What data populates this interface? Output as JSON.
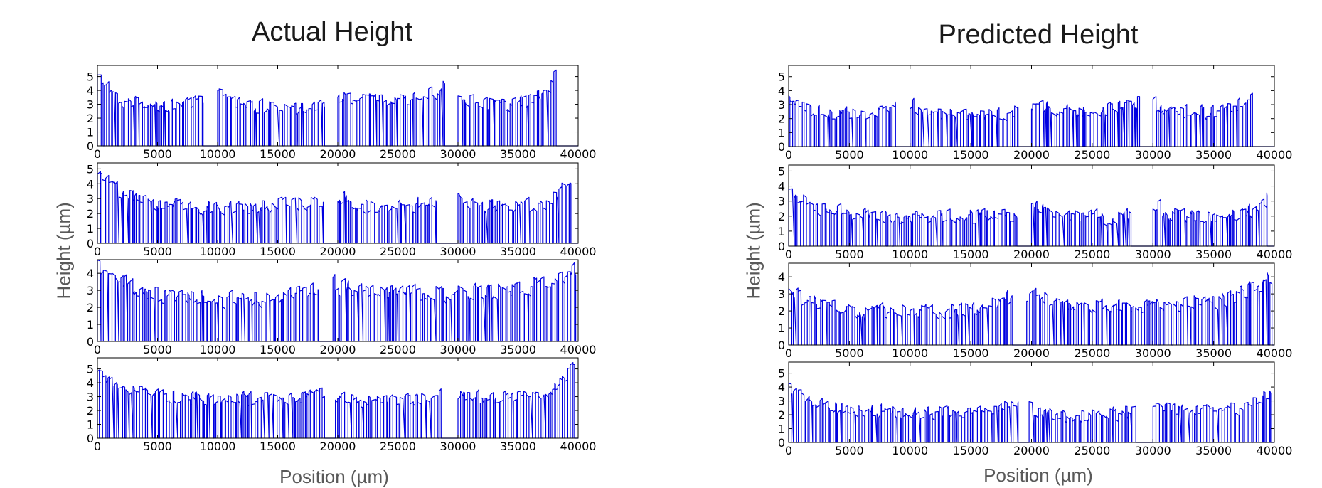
{
  "figure": {
    "left_title": "Actual Height",
    "right_title": "Predicted Height",
    "left_xlabel": "Position (µm)",
    "right_xlabel": "Position (µm)",
    "left_ylabel": "Height (µm)",
    "right_ylabel": "Height (µm)"
  },
  "colors": {
    "trace": "#0000e0",
    "frame": "#000000"
  },
  "chart_data": [
    {
      "type": "line",
      "group": "Actual Height",
      "row": 1,
      "xlim": [
        0,
        40000
      ],
      "ylim": [
        0,
        5.8
      ],
      "xticks": [
        0,
        5000,
        10000,
        15000,
        20000,
        25000,
        30000,
        35000,
        40000
      ],
      "yticks": [
        0,
        1,
        2,
        3,
        4,
        5
      ],
      "grid": false,
      "segments": [
        {
          "x0": 0,
          "x1": 8800,
          "h0": 5.0,
          "h1": 3.3,
          "mid": 2.9
        },
        {
          "x0": 10000,
          "x1": 18900,
          "h0": 4.2,
          "h1": 3.1,
          "mid": 2.7
        },
        {
          "x0": 20000,
          "x1": 28900,
          "h0": 3.6,
          "h1": 4.3,
          "mid": 3.3
        },
        {
          "x0": 30000,
          "x1": 38200,
          "h0": 3.8,
          "h1": 5.3,
          "mid": 2.9
        }
      ]
    },
    {
      "type": "line",
      "group": "Actual Height",
      "row": 2,
      "xlim": [
        0,
        40000
      ],
      "ylim": [
        0,
        5.4
      ],
      "xticks": [
        0,
        5000,
        10000,
        15000,
        20000,
        25000,
        30000,
        35000,
        40000
      ],
      "yticks": [
        0,
        1,
        2,
        3,
        4,
        5
      ],
      "grid": false,
      "segments": [
        {
          "x0": 0,
          "x1": 18800,
          "h0": 4.5,
          "h1": 2.9,
          "mid": 2.4
        },
        {
          "x0": 20000,
          "x1": 28200,
          "h0": 3.2,
          "h1": 2.6,
          "mid": 2.4
        },
        {
          "x0": 30000,
          "x1": 39400,
          "h0": 3.1,
          "h1": 4.6,
          "mid": 2.4
        }
      ]
    },
    {
      "type": "line",
      "group": "Actual Height",
      "row": 3,
      "xlim": [
        0,
        40000
      ],
      "ylim": [
        0,
        4.8
      ],
      "xticks": [
        0,
        5000,
        10000,
        15000,
        20000,
        25000,
        30000,
        35000,
        40000
      ],
      "yticks": [
        0,
        1,
        2,
        3,
        4
      ],
      "grid": false,
      "segments": [
        {
          "x0": 0,
          "x1": 18400,
          "h0": 4.6,
          "h1": 3.3,
          "mid": 2.4
        },
        {
          "x0": 19600,
          "x1": 39800,
          "h0": 3.3,
          "h1": 4.4,
          "mid": 2.8
        }
      ]
    },
    {
      "type": "line",
      "group": "Actual Height",
      "row": 4,
      "xlim": [
        0,
        40000
      ],
      "ylim": [
        0,
        5.8
      ],
      "xticks": [
        0,
        5000,
        10000,
        15000,
        20000,
        25000,
        30000,
        35000,
        40000
      ],
      "yticks": [
        0,
        1,
        2,
        3,
        4,
        5
      ],
      "grid": false,
      "segments": [
        {
          "x0": 0,
          "x1": 18900,
          "h0": 4.6,
          "h1": 3.2,
          "mid": 2.8
        },
        {
          "x0": 19800,
          "x1": 28600,
          "h0": 3.0,
          "h1": 3.5,
          "mid": 2.6
        },
        {
          "x0": 30000,
          "x1": 39700,
          "h0": 3.0,
          "h1": 5.5,
          "mid": 2.9
        }
      ]
    },
    {
      "type": "line",
      "group": "Predicted Height",
      "row": 1,
      "xlim": [
        0,
        40000
      ],
      "ylim": [
        0,
        5.8
      ],
      "xticks": [
        0,
        5000,
        10000,
        15000,
        20000,
        25000,
        30000,
        35000,
        40000
      ],
      "yticks": [
        0,
        1,
        2,
        3,
        4,
        5
      ],
      "grid": false,
      "segments": [
        {
          "x0": 0,
          "x1": 8800,
          "h0": 3.4,
          "h1": 2.8,
          "mid": 2.3
        },
        {
          "x0": 10000,
          "x1": 18900,
          "h0": 3.0,
          "h1": 2.7,
          "mid": 2.2
        },
        {
          "x0": 20000,
          "x1": 28900,
          "h0": 3.1,
          "h1": 3.2,
          "mid": 2.6
        },
        {
          "x0": 30000,
          "x1": 38200,
          "h0": 3.1,
          "h1": 3.8,
          "mid": 2.4
        }
      ]
    },
    {
      "type": "line",
      "group": "Predicted Height",
      "row": 2,
      "xlim": [
        0,
        40000
      ],
      "ylim": [
        0,
        5.4
      ],
      "xticks": [
        0,
        5000,
        10000,
        15000,
        20000,
        25000,
        30000,
        35000,
        40000
      ],
      "yticks": [
        0,
        1,
        2,
        3,
        4,
        5
      ],
      "grid": false,
      "segments": [
        {
          "x0": 0,
          "x1": 18800,
          "h0": 3.5,
          "h1": 2.1,
          "mid": 1.9
        },
        {
          "x0": 20000,
          "x1": 28200,
          "h0": 2.9,
          "h1": 2.3,
          "mid": 1.9
        },
        {
          "x0": 30000,
          "x1": 39400,
          "h0": 2.8,
          "h1": 3.2,
          "mid": 1.9
        }
      ]
    },
    {
      "type": "line",
      "group": "Predicted Height",
      "row": 3,
      "xlim": [
        0,
        40000
      ],
      "ylim": [
        0,
        4.8
      ],
      "xticks": [
        0,
        5000,
        10000,
        15000,
        20000,
        25000,
        30000,
        35000,
        40000
      ],
      "yticks": [
        0,
        1,
        2,
        3,
        4
      ],
      "grid": false,
      "segments": [
        {
          "x0": 0,
          "x1": 18400,
          "h0": 3.0,
          "h1": 2.8,
          "mid": 1.9
        },
        {
          "x0": 19600,
          "x1": 39800,
          "h0": 2.9,
          "h1": 4.0,
          "mid": 2.3
        }
      ]
    },
    {
      "type": "line",
      "group": "Predicted Height",
      "row": 4,
      "xlim": [
        0,
        40000
      ],
      "ylim": [
        0,
        5.8
      ],
      "xticks": [
        0,
        5000,
        10000,
        15000,
        20000,
        25000,
        30000,
        35000,
        40000
      ],
      "yticks": [
        0,
        1,
        2,
        3,
        4,
        5
      ],
      "grid": false,
      "segments": [
        {
          "x0": 0,
          "x1": 18900,
          "h0": 3.9,
          "h1": 2.8,
          "mid": 2.1
        },
        {
          "x0": 19800,
          "x1": 28600,
          "h0": 2.5,
          "h1": 2.6,
          "mid": 1.9
        },
        {
          "x0": 30000,
          "x1": 39700,
          "h0": 2.7,
          "h1": 3.9,
          "mid": 2.3
        }
      ]
    }
  ]
}
